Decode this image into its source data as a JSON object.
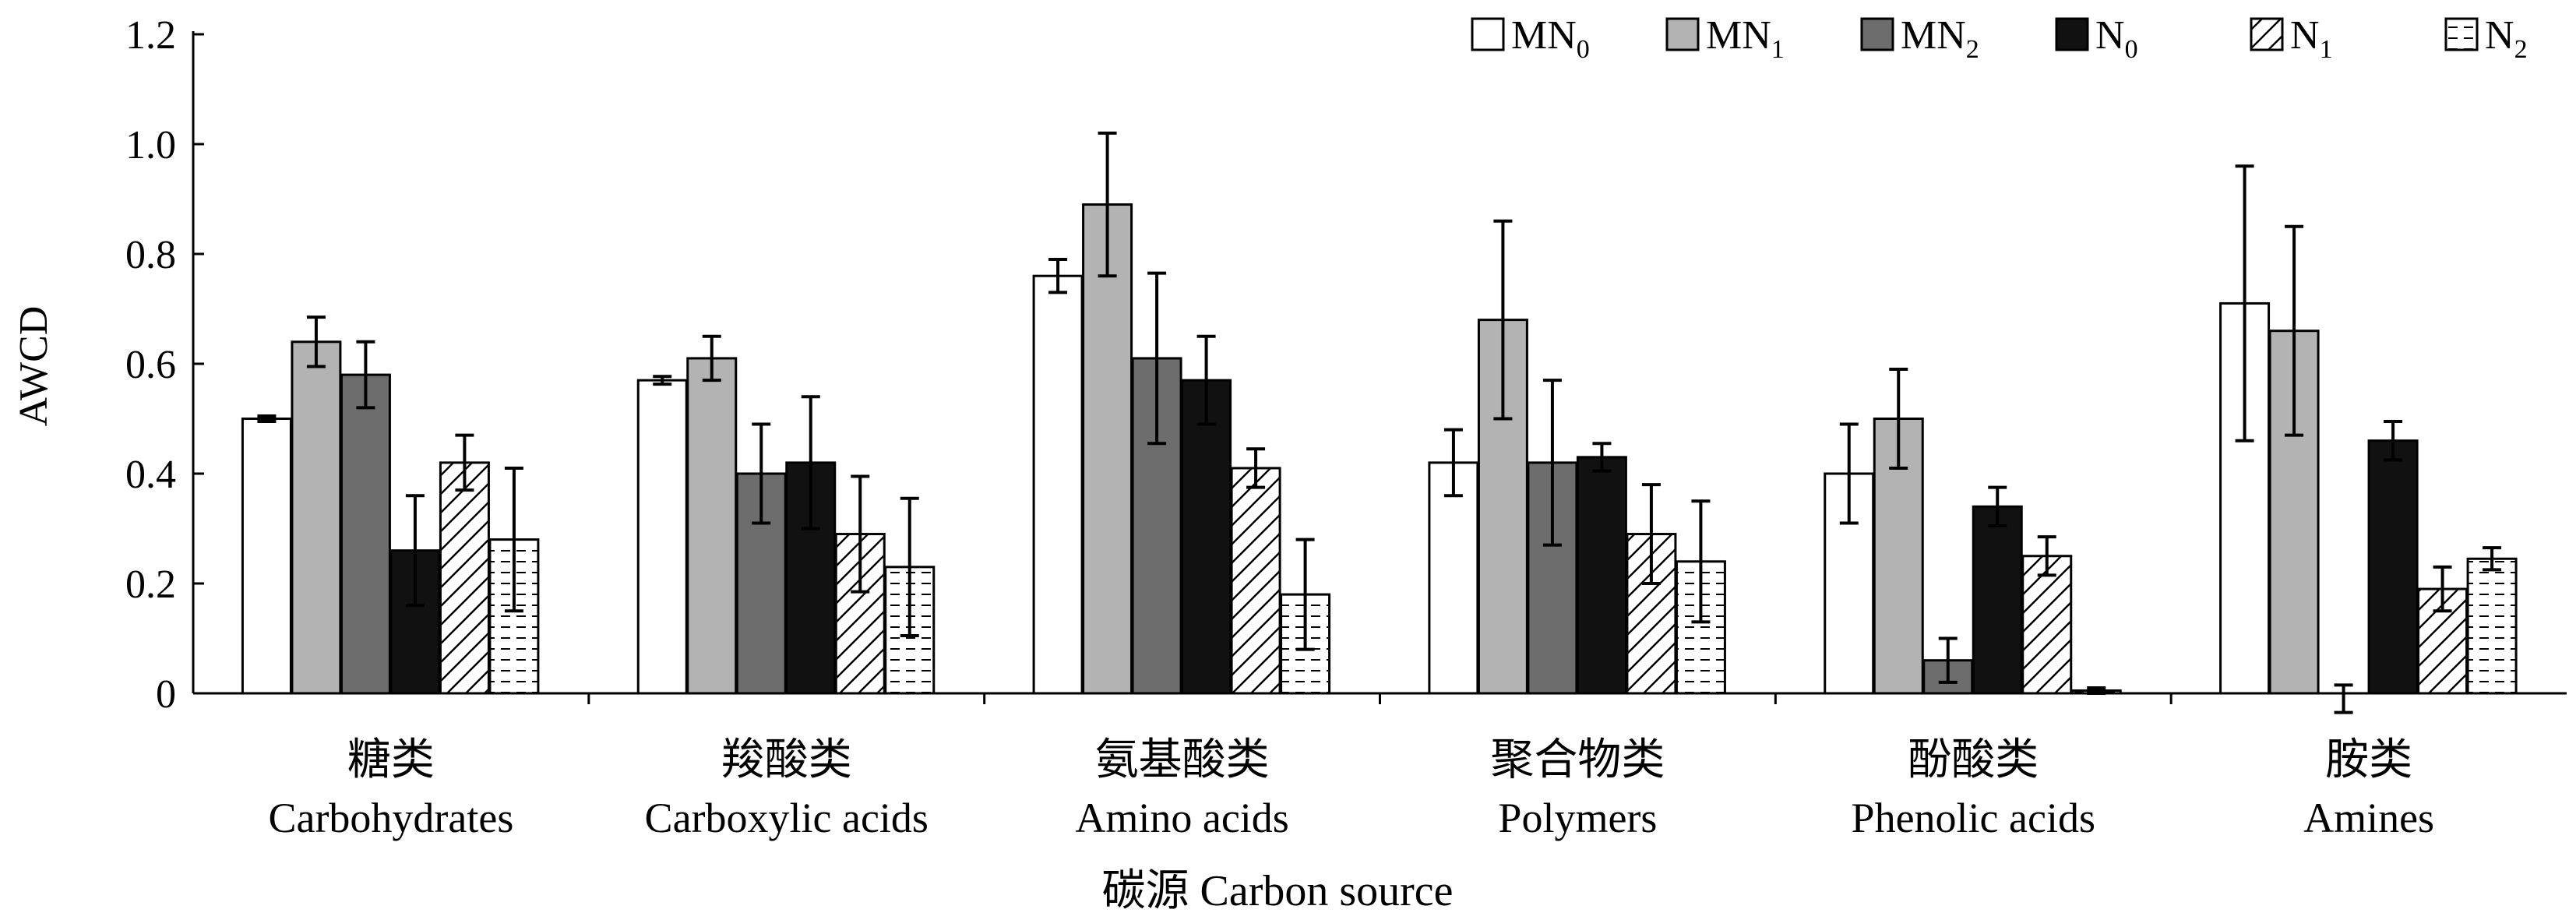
{
  "chart_data": {
    "type": "bar",
    "ylabel": "AWCD",
    "xlabel": "碳源 Carbon source",
    "ylim": [
      0,
      1.2
    ],
    "yticks": [
      {
        "value": 0,
        "label": "0"
      },
      {
        "value": 0.2,
        "label": "0.2"
      },
      {
        "value": 0.4,
        "label": "0.4"
      },
      {
        "value": 0.6,
        "label": "0.6"
      },
      {
        "value": 0.8,
        "label": "0.8"
      },
      {
        "value": 1.0,
        "label": "1.0"
      },
      {
        "value": 1.2,
        "label": "1.2"
      }
    ],
    "categories": [
      {
        "zh": "糖类",
        "en": "Carbohydrates"
      },
      {
        "zh": "羧酸类",
        "en": "Carboxylic acids"
      },
      {
        "zh": "氨基酸类",
        "en": "Amino acids"
      },
      {
        "zh": "聚合物类",
        "en": "Polymers"
      },
      {
        "zh": "酚酸类",
        "en": "Phenolic acids"
      },
      {
        "zh": "胺类",
        "en": "Amines"
      }
    ],
    "series": [
      {
        "name": "MN",
        "sub": "0",
        "fill": "white",
        "values": [
          0.5,
          0.57,
          0.76,
          0.42,
          0.4,
          0.71
        ],
        "errors": [
          0.005,
          0.007,
          0.03,
          0.06,
          0.09,
          0.25
        ]
      },
      {
        "name": "MN",
        "sub": "1",
        "fill": "#b3b3b3",
        "values": [
          0.64,
          0.61,
          0.89,
          0.68,
          0.5,
          0.66
        ],
        "errors": [
          0.045,
          0.04,
          0.13,
          0.18,
          0.09,
          0.19
        ]
      },
      {
        "name": "MN",
        "sub": "2",
        "fill": "#6d6d6d",
        "values": [
          0.58,
          0.4,
          0.61,
          0.42,
          0.06,
          0.0
        ],
        "errors": [
          0.06,
          0.09,
          0.155,
          0.15,
          0.04,
          0.0
        ]
      },
      {
        "name": "N",
        "sub": "0",
        "fill": "#111111",
        "values": [
          0.26,
          0.42,
          0.57,
          0.43,
          0.34,
          0.46
        ],
        "errors": [
          0.1,
          0.12,
          0.08,
          0.025,
          0.035,
          0.035
        ]
      },
      {
        "name": "N",
        "sub": "1",
        "fill": "hatch",
        "values": [
          0.42,
          0.29,
          0.41,
          0.29,
          0.25,
          0.19
        ],
        "errors": [
          0.05,
          0.105,
          0.035,
          0.09,
          0.035,
          0.04
        ]
      },
      {
        "name": "N",
        "sub": "2",
        "fill": "dash",
        "values": [
          0.28,
          0.23,
          0.18,
          0.24,
          0.005,
          0.245
        ],
        "errors": [
          0.13,
          0.125,
          0.1,
          0.11,
          0.005,
          0.02
        ]
      }
    ],
    "extra_marks": [
      {
        "category": 5,
        "series": 2,
        "value": -0.01,
        "error": 0.025
      }
    ],
    "legend_position": "top-right",
    "grid": false
  }
}
